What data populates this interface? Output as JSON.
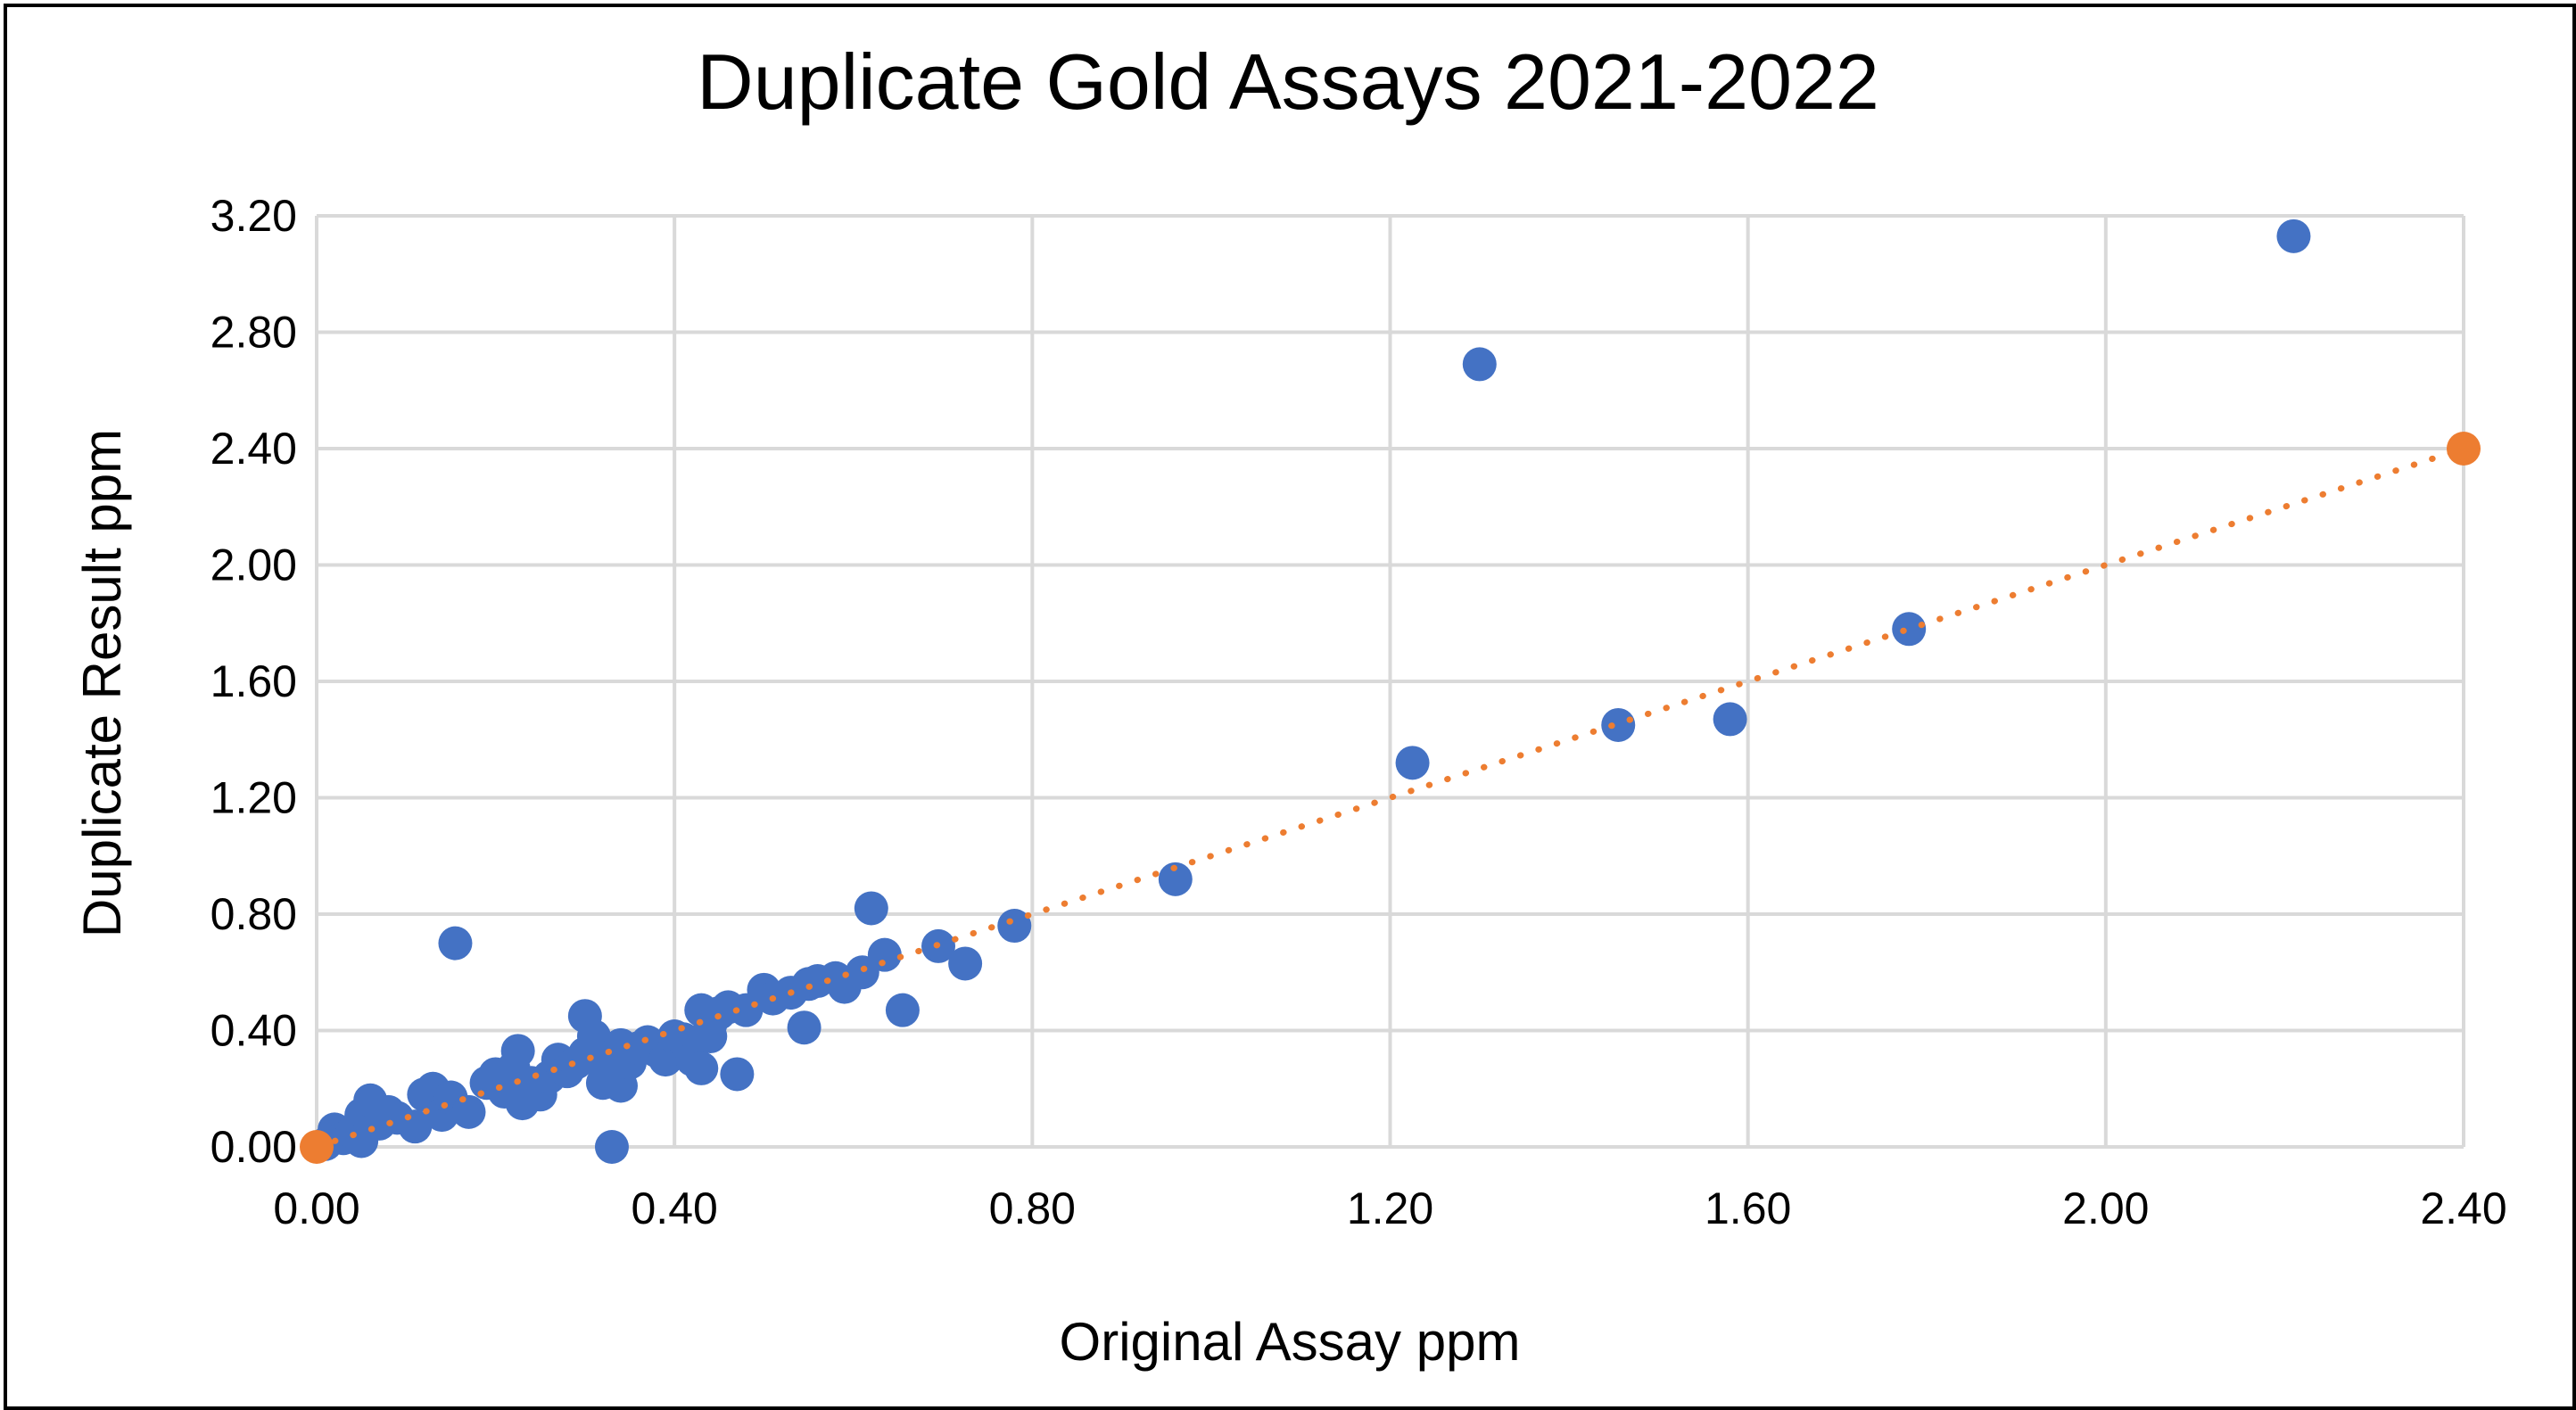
{
  "chart_data": {
    "type": "scatter",
    "title": "Duplicate Gold Assays 2021-2022",
    "xlabel": "Original Assay ppm",
    "ylabel": "Duplicate Result ppm",
    "xlim": [
      0,
      2.4
    ],
    "ylim": [
      0,
      3.2
    ],
    "xticks": [
      "0.00",
      "0.40",
      "0.80",
      "1.20",
      "1.60",
      "2.00",
      "2.40"
    ],
    "yticks": [
      "0.00",
      "0.40",
      "0.80",
      "1.20",
      "1.60",
      "2.00",
      "2.40",
      "2.80",
      "3.20"
    ],
    "grid": true,
    "legend": "none",
    "series": [
      {
        "color": "#4472c4",
        "marker": "circle",
        "points": [
          [
            0.01,
            0.01
          ],
          [
            0.02,
            0.06
          ],
          [
            0.03,
            0.03
          ],
          [
            0.04,
            0.05
          ],
          [
            0.05,
            0.11
          ],
          [
            0.05,
            0.02
          ],
          [
            0.06,
            0.16
          ],
          [
            0.07,
            0.08
          ],
          [
            0.08,
            0.12
          ],
          [
            0.09,
            0.1
          ],
          [
            0.11,
            0.07
          ],
          [
            0.12,
            0.18
          ],
          [
            0.13,
            0.2
          ],
          [
            0.14,
            0.11
          ],
          [
            0.15,
            0.17
          ],
          [
            0.155,
            0.7
          ],
          [
            0.17,
            0.12
          ],
          [
            0.19,
            0.22
          ],
          [
            0.2,
            0.25
          ],
          [
            0.21,
            0.19
          ],
          [
            0.22,
            0.27
          ],
          [
            0.225,
            0.33
          ],
          [
            0.23,
            0.15
          ],
          [
            0.24,
            0.22
          ],
          [
            0.25,
            0.18
          ],
          [
            0.26,
            0.24
          ],
          [
            0.27,
            0.3
          ],
          [
            0.28,
            0.26
          ],
          [
            0.29,
            0.29
          ],
          [
            0.3,
            0.32
          ],
          [
            0.3,
            0.45
          ],
          [
            0.31,
            0.38
          ],
          [
            0.32,
            0.28
          ],
          [
            0.32,
            0.22
          ],
          [
            0.33,
            0.31
          ],
          [
            0.33,
            0.0
          ],
          [
            0.34,
            0.21
          ],
          [
            0.34,
            0.35
          ],
          [
            0.35,
            0.29
          ],
          [
            0.36,
            0.34
          ],
          [
            0.37,
            0.36
          ],
          [
            0.38,
            0.33
          ],
          [
            0.39,
            0.3
          ],
          [
            0.4,
            0.38
          ],
          [
            0.41,
            0.37
          ],
          [
            0.42,
            0.3
          ],
          [
            0.43,
            0.47
          ],
          [
            0.43,
            0.27
          ],
          [
            0.44,
            0.42
          ],
          [
            0.44,
            0.38
          ],
          [
            0.45,
            0.46
          ],
          [
            0.46,
            0.48
          ],
          [
            0.47,
            0.25
          ],
          [
            0.48,
            0.47
          ],
          [
            0.5,
            0.54
          ],
          [
            0.51,
            0.51
          ],
          [
            0.53,
            0.53
          ],
          [
            0.545,
            0.41
          ],
          [
            0.55,
            0.56
          ],
          [
            0.56,
            0.57
          ],
          [
            0.58,
            0.58
          ],
          [
            0.59,
            0.55
          ],
          [
            0.61,
            0.6
          ],
          [
            0.62,
            0.82
          ],
          [
            0.635,
            0.66
          ],
          [
            0.655,
            0.47
          ],
          [
            0.695,
            0.69
          ],
          [
            0.725,
            0.63
          ],
          [
            0.78,
            0.76
          ],
          [
            0.96,
            0.92
          ],
          [
            1.225,
            1.32
          ],
          [
            1.3,
            2.69
          ],
          [
            1.455,
            1.45
          ],
          [
            1.58,
            1.47
          ],
          [
            1.78,
            1.78
          ],
          [
            2.21,
            3.13
          ]
        ]
      },
      {
        "color": "#ed7d31",
        "marker": "circle",
        "line": "dotted",
        "points": [
          [
            0,
            0
          ],
          [
            2.4,
            2.4
          ]
        ]
      }
    ]
  }
}
